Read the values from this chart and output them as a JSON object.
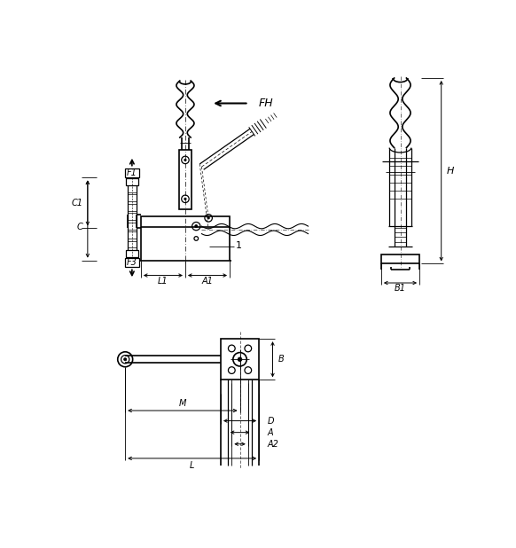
{
  "bg_color": "#ffffff",
  "line_color": "#000000",
  "figsize": [
    5.82,
    6.18
  ],
  "dpi": 100,
  "labels": {
    "FH": "FH",
    "F1": "F1",
    "F3": "F3",
    "C1": "C1",
    "C": "C",
    "L1": "L1",
    "A1": "A1",
    "H": "H",
    "B1": "B1",
    "M": "M",
    "D": "D",
    "A": "A",
    "A2": "A2",
    "L": "L",
    "B": "B",
    "num1": "1"
  }
}
